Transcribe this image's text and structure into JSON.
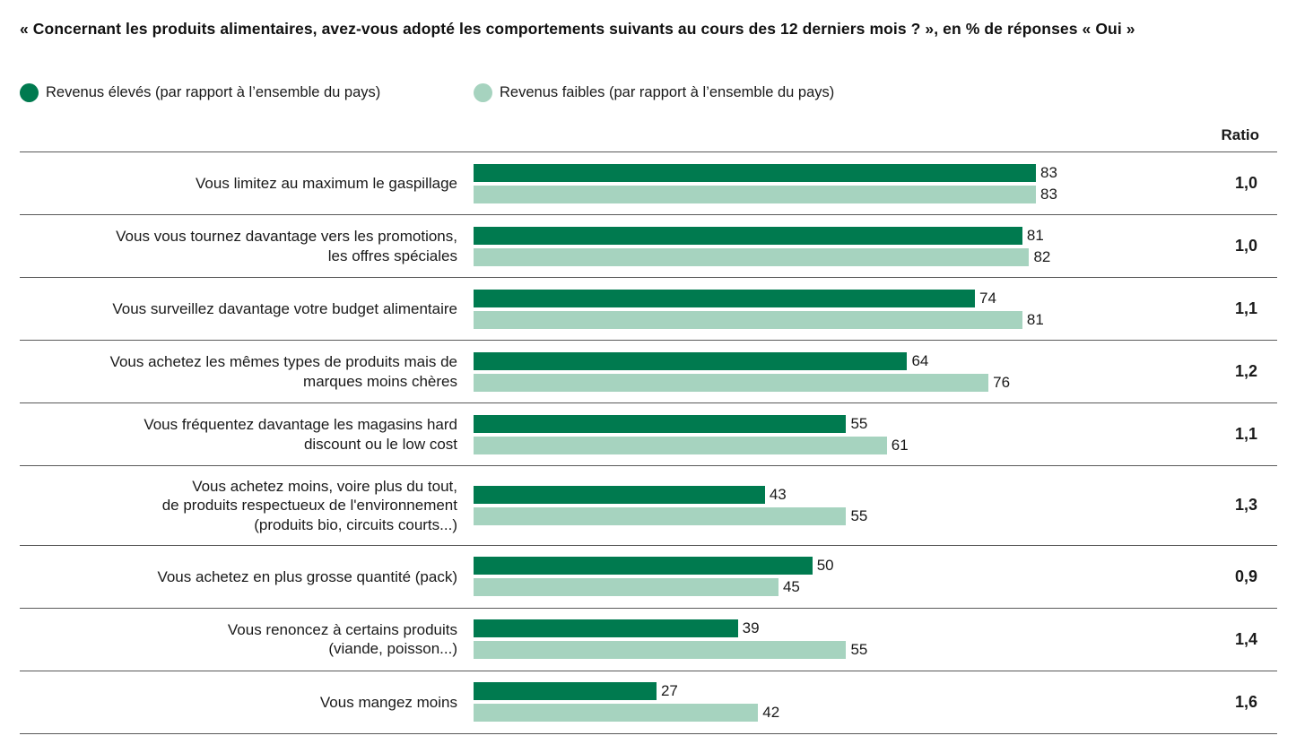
{
  "title": "« Concernant les produits alimentaires, avez-vous adopté les comportements suivants au cours des 12 derniers mois ? », en % de réponses « Oui »",
  "legend": {
    "high_label": "Revenus élevés (par rapport à l’ensemble du pays)",
    "low_label": "Revenus faibles (par rapport à l’ensemble du pays)"
  },
  "ratio_header": "Ratio",
  "colors": {
    "high": "#007a4f",
    "low": "#a6d3bf",
    "separator": "#595959"
  },
  "chart_data": {
    "type": "bar",
    "orientation": "horizontal",
    "title": "« Concernant les produits alimentaires, avez-vous adopté les comportements suivants au cours des 12 derniers mois ? », en % de réponses « Oui »",
    "xlabel": "",
    "ylabel": "",
    "xlim": [
      0,
      83
    ],
    "grid": false,
    "legend_position": "top",
    "value_labels": true,
    "categories": [
      "Vous limitez au maximum le gaspillage",
      "Vous vous tournez davantage vers les promotions,\nles offres spéciales",
      "Vous surveillez davantage votre budget alimentaire",
      "Vous achetez les mêmes types de produits mais de\nmarques moins chères",
      "Vous fréquentez davantage les magasins hard\ndiscount ou le low cost",
      "Vous achetez moins, voire plus du tout,\nde produits respectueux de l'environnement\n(produits bio, circuits courts...)",
      "Vous achetez en plus grosse quantité (pack)",
      "Vous renoncez à certains produits\n(viande, poisson...)",
      "Vous mangez moins"
    ],
    "series": [
      {
        "name": "Revenus élevés (par rapport à l’ensemble du pays)",
        "color": "#007a4f",
        "values": [
          83,
          81,
          74,
          64,
          55,
          43,
          50,
          39,
          27
        ]
      },
      {
        "name": "Revenus faibles (par rapport à l’ensemble du pays)",
        "color": "#a6d3bf",
        "values": [
          83,
          82,
          81,
          76,
          61,
          55,
          45,
          55,
          42
        ]
      }
    ],
    "ratios": [
      "1,0",
      "1,0",
      "1,1",
      "1,2",
      "1,1",
      "1,3",
      "0,9",
      "1,4",
      "1,6"
    ]
  }
}
